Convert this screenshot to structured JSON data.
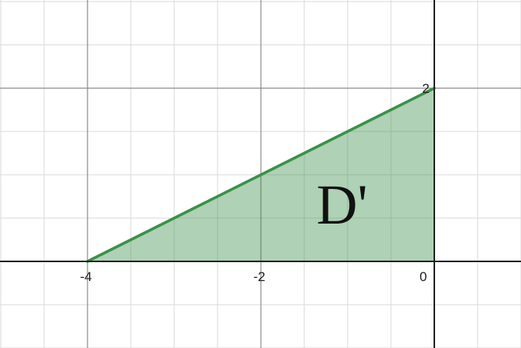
{
  "graph": {
    "x_ticks": [
      {
        "value": -4,
        "label": "-4"
      },
      {
        "value": -2,
        "label": "-2"
      },
      {
        "value": 0,
        "label": "0"
      }
    ],
    "y_ticks": [
      {
        "value": 2,
        "label": "2"
      }
    ],
    "x_range": [
      -5,
      1
    ],
    "y_range": [
      -1,
      3
    ],
    "grid": true,
    "region": {
      "label": "D'",
      "label_anchor": [
        -1,
        0.7
      ],
      "vertices": [
        [
          -4,
          0
        ],
        [
          0,
          2
        ],
        [
          0,
          0
        ]
      ],
      "fill_color": "#388c46",
      "fill_opacity": 0.4,
      "stroke_color": "#3d8f4a"
    },
    "colors": {
      "axis": "#222222",
      "major_grid": "#8c8c8c",
      "minor_grid": "#dadada"
    }
  }
}
